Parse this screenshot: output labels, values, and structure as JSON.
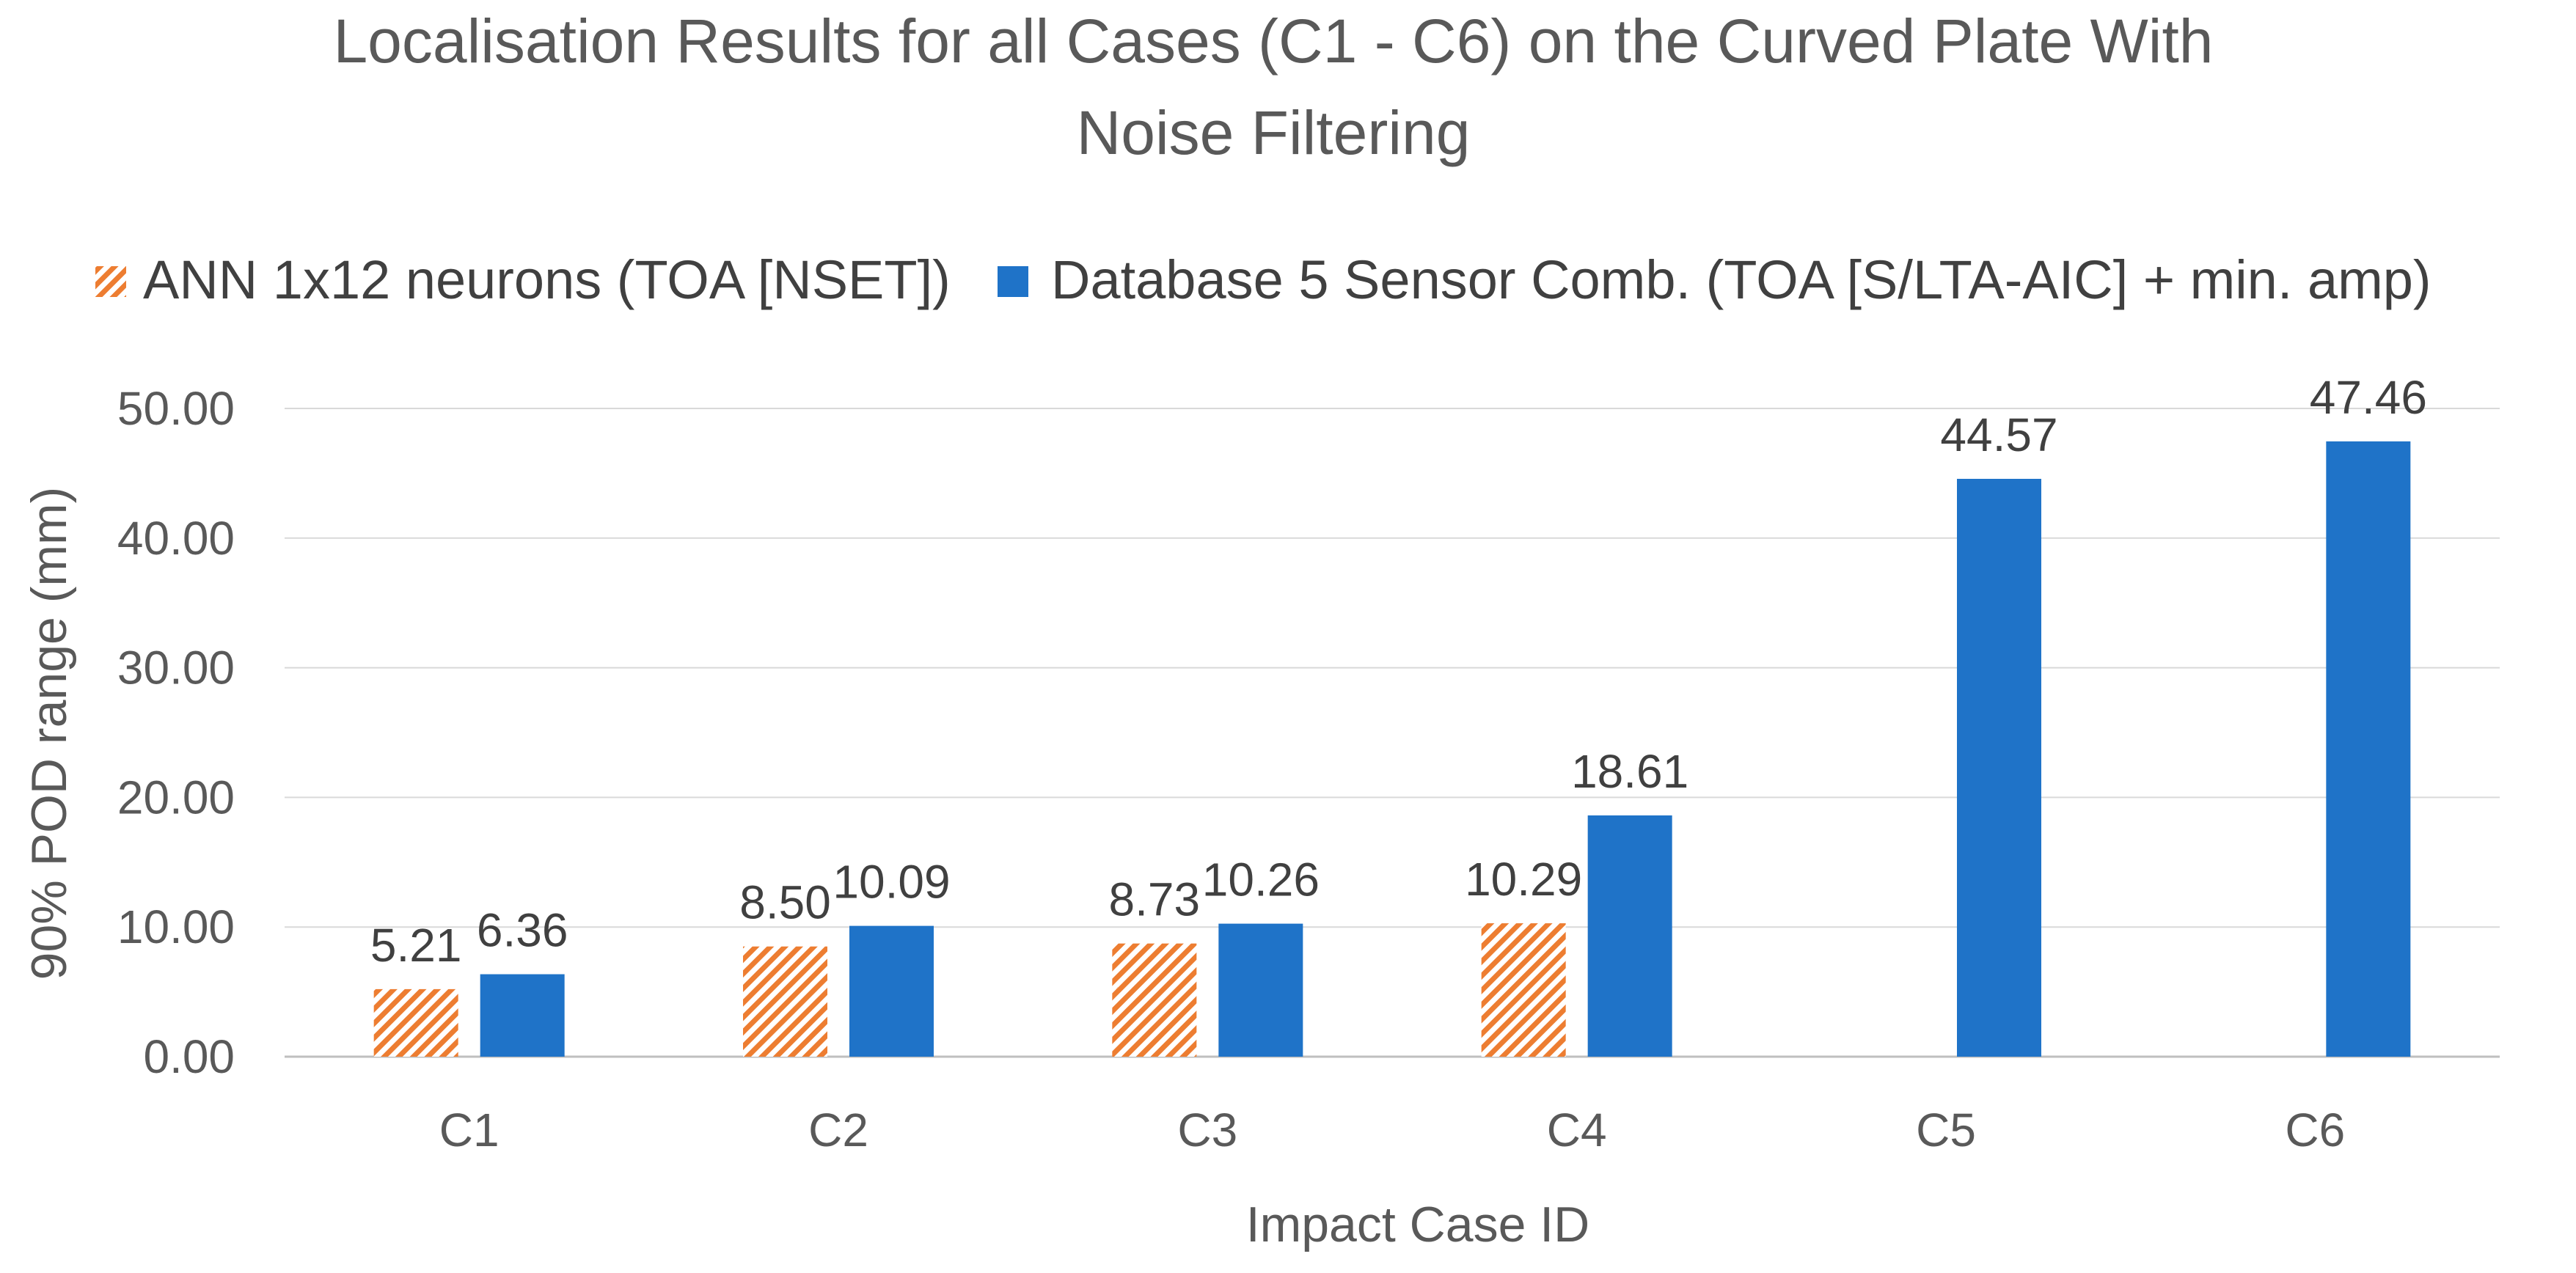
{
  "chart_data": {
    "type": "bar",
    "title_lines": [
      "Localisation Results for all Cases (C1 - C6) on the Curved Plate With",
      "Noise Filtering"
    ],
    "xlabel": "Impact Case ID",
    "ylabel": "90% POD range (mm)",
    "categories": [
      "C1",
      "C2",
      "C3",
      "C4",
      "C5",
      "C6"
    ],
    "ylim": [
      0,
      50
    ],
    "yticks": [
      0,
      10,
      20,
      30,
      40,
      50
    ],
    "ytick_labels": [
      "0.00",
      "10.00",
      "20.00",
      "30.00",
      "40.00",
      "50.00"
    ],
    "grid": true,
    "legend_position": "top",
    "series": [
      {
        "name": "ANN 1x12 neurons (TOA [NSET])",
        "color": "#ED7D31",
        "pattern": "diagonal-hatch",
        "values": [
          5.21,
          8.5,
          8.73,
          10.29,
          null,
          null
        ],
        "labels": [
          "5.21",
          "8.50",
          "8.73",
          "10.29",
          "",
          ""
        ]
      },
      {
        "name": "Database 5 Sensor Comb. (TOA [S/LTA-AIC] + min. amp)",
        "color": "#1F73C8",
        "pattern": "solid",
        "values": [
          6.36,
          10.09,
          10.26,
          18.61,
          44.57,
          47.46
        ],
        "labels": [
          "6.36",
          "10.09",
          "10.26",
          "18.61",
          "44.57",
          "47.46"
        ]
      }
    ]
  }
}
